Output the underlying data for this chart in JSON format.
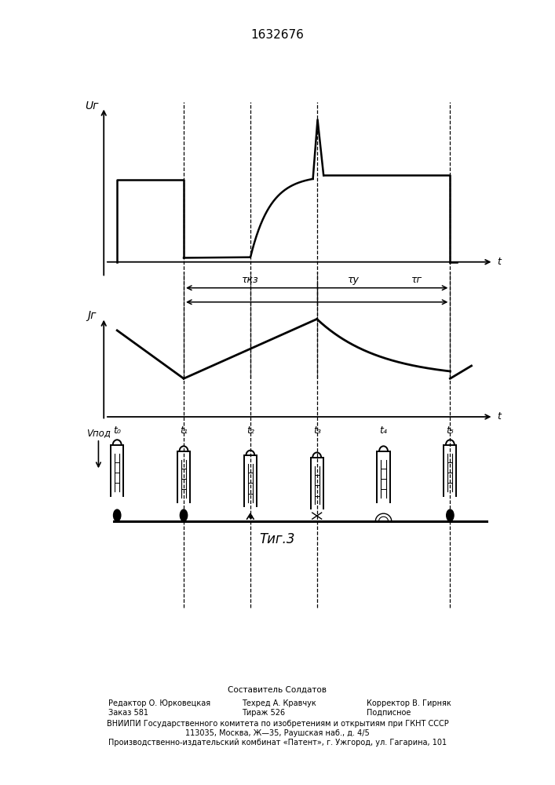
{
  "title": "1632676",
  "fig_label": "Τиг.3",
  "Ug_label": "Uг",
  "Jg_label": "Jг",
  "Vpod_label": "Vпод",
  "t_axis_label": "t",
  "tau_kz_label": "τкз",
  "tau_u_label": "τу",
  "tau_g_label": "τг",
  "t_labels": [
    "t₀",
    "t₁",
    "t₂",
    "t₃",
    "t₄",
    "t₅"
  ],
  "footer_sostavitel": "Составитель Солдатов",
  "footer_redaktor": "Редактор О. Юрковецкая",
  "footer_zakaz": "Заказ 581",
  "footer_tehred": "Техред А. Кравчук",
  "footer_tirazh": "Тираж 526",
  "footer_korrektor": "Корректор В. Гирняк",
  "footer_podpisnoe": "Подписное",
  "footer_vnipi": "ВНИИПИ Государственного комитета по изобретениям и открытиям при ГКНТ СССР",
  "footer_address": "113035, Москва, Ж—35, Раушская наб., д. 4/5",
  "footer_kombinat": "Производственно-издательский комбинат «Патент», г. Ужгород, ул. Гагарина, 101"
}
